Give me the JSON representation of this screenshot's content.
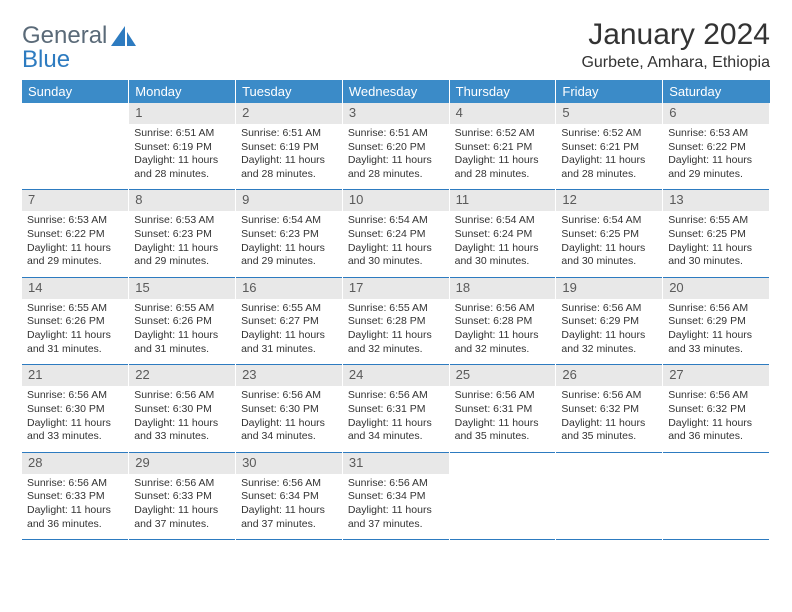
{
  "logo": {
    "word1": "General",
    "word2": "Blue"
  },
  "title": "January 2024",
  "location": "Gurbete, Amhara, Ethiopia",
  "colors": {
    "header_bg": "#3b8bc8",
    "header_text": "#ffffff",
    "daynum_bg": "#e8e8e8",
    "daynum_text": "#5a5a5a",
    "row_border": "#2d7bc0",
    "logo_gray": "#5a6a78",
    "logo_blue": "#2d7bc0"
  },
  "weekdays": [
    "Sunday",
    "Monday",
    "Tuesday",
    "Wednesday",
    "Thursday",
    "Friday",
    "Saturday"
  ],
  "weeks": [
    {
      "nums": [
        "",
        "1",
        "2",
        "3",
        "4",
        "5",
        "6"
      ],
      "cells": [
        null,
        {
          "sunrise": "6:51 AM",
          "sunset": "6:19 PM",
          "daylight": "11 hours and 28 minutes."
        },
        {
          "sunrise": "6:51 AM",
          "sunset": "6:19 PM",
          "daylight": "11 hours and 28 minutes."
        },
        {
          "sunrise": "6:51 AM",
          "sunset": "6:20 PM",
          "daylight": "11 hours and 28 minutes."
        },
        {
          "sunrise": "6:52 AM",
          "sunset": "6:21 PM",
          "daylight": "11 hours and 28 minutes."
        },
        {
          "sunrise": "6:52 AM",
          "sunset": "6:21 PM",
          "daylight": "11 hours and 28 minutes."
        },
        {
          "sunrise": "6:53 AM",
          "sunset": "6:22 PM",
          "daylight": "11 hours and 29 minutes."
        }
      ]
    },
    {
      "nums": [
        "7",
        "8",
        "9",
        "10",
        "11",
        "12",
        "13"
      ],
      "cells": [
        {
          "sunrise": "6:53 AM",
          "sunset": "6:22 PM",
          "daylight": "11 hours and 29 minutes."
        },
        {
          "sunrise": "6:53 AM",
          "sunset": "6:23 PM",
          "daylight": "11 hours and 29 minutes."
        },
        {
          "sunrise": "6:54 AM",
          "sunset": "6:23 PM",
          "daylight": "11 hours and 29 minutes."
        },
        {
          "sunrise": "6:54 AM",
          "sunset": "6:24 PM",
          "daylight": "11 hours and 30 minutes."
        },
        {
          "sunrise": "6:54 AM",
          "sunset": "6:24 PM",
          "daylight": "11 hours and 30 minutes."
        },
        {
          "sunrise": "6:54 AM",
          "sunset": "6:25 PM",
          "daylight": "11 hours and 30 minutes."
        },
        {
          "sunrise": "6:55 AM",
          "sunset": "6:25 PM",
          "daylight": "11 hours and 30 minutes."
        }
      ]
    },
    {
      "nums": [
        "14",
        "15",
        "16",
        "17",
        "18",
        "19",
        "20"
      ],
      "cells": [
        {
          "sunrise": "6:55 AM",
          "sunset": "6:26 PM",
          "daylight": "11 hours and 31 minutes."
        },
        {
          "sunrise": "6:55 AM",
          "sunset": "6:26 PM",
          "daylight": "11 hours and 31 minutes."
        },
        {
          "sunrise": "6:55 AM",
          "sunset": "6:27 PM",
          "daylight": "11 hours and 31 minutes."
        },
        {
          "sunrise": "6:55 AM",
          "sunset": "6:28 PM",
          "daylight": "11 hours and 32 minutes."
        },
        {
          "sunrise": "6:56 AM",
          "sunset": "6:28 PM",
          "daylight": "11 hours and 32 minutes."
        },
        {
          "sunrise": "6:56 AM",
          "sunset": "6:29 PM",
          "daylight": "11 hours and 32 minutes."
        },
        {
          "sunrise": "6:56 AM",
          "sunset": "6:29 PM",
          "daylight": "11 hours and 33 minutes."
        }
      ]
    },
    {
      "nums": [
        "21",
        "22",
        "23",
        "24",
        "25",
        "26",
        "27"
      ],
      "cells": [
        {
          "sunrise": "6:56 AM",
          "sunset": "6:30 PM",
          "daylight": "11 hours and 33 minutes."
        },
        {
          "sunrise": "6:56 AM",
          "sunset": "6:30 PM",
          "daylight": "11 hours and 33 minutes."
        },
        {
          "sunrise": "6:56 AM",
          "sunset": "6:30 PM",
          "daylight": "11 hours and 34 minutes."
        },
        {
          "sunrise": "6:56 AM",
          "sunset": "6:31 PM",
          "daylight": "11 hours and 34 minutes."
        },
        {
          "sunrise": "6:56 AM",
          "sunset": "6:31 PM",
          "daylight": "11 hours and 35 minutes."
        },
        {
          "sunrise": "6:56 AM",
          "sunset": "6:32 PM",
          "daylight": "11 hours and 35 minutes."
        },
        {
          "sunrise": "6:56 AM",
          "sunset": "6:32 PM",
          "daylight": "11 hours and 36 minutes."
        }
      ]
    },
    {
      "nums": [
        "28",
        "29",
        "30",
        "31",
        "",
        "",
        ""
      ],
      "cells": [
        {
          "sunrise": "6:56 AM",
          "sunset": "6:33 PM",
          "daylight": "11 hours and 36 minutes."
        },
        {
          "sunrise": "6:56 AM",
          "sunset": "6:33 PM",
          "daylight": "11 hours and 37 minutes."
        },
        {
          "sunrise": "6:56 AM",
          "sunset": "6:34 PM",
          "daylight": "11 hours and 37 minutes."
        },
        {
          "sunrise": "6:56 AM",
          "sunset": "6:34 PM",
          "daylight": "11 hours and 37 minutes."
        },
        null,
        null,
        null
      ]
    }
  ]
}
